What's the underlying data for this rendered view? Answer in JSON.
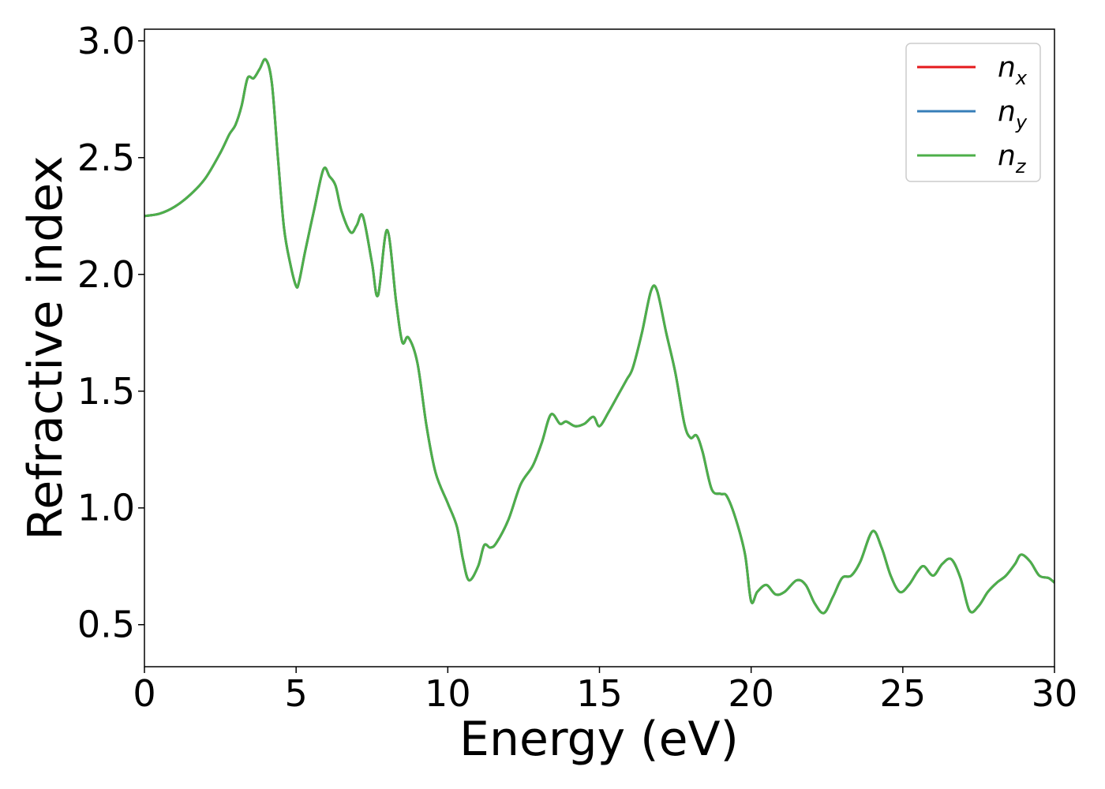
{
  "chart_data": {
    "type": "line",
    "title": "",
    "xlabel": "Energy (eV)",
    "ylabel": "Refractive index",
    "xlim": [
      0,
      30
    ],
    "ylim": [
      0.32,
      3.05
    ],
    "xticks": [
      0,
      5,
      10,
      15,
      20,
      25,
      30
    ],
    "xtick_labels": [
      "0",
      "5",
      "10",
      "15",
      "20",
      "25",
      "30"
    ],
    "yticks": [
      0.5,
      1.0,
      1.5,
      2.0,
      2.5,
      3.0
    ],
    "ytick_labels": [
      "0.5",
      "1.0",
      "1.5",
      "2.0",
      "2.5",
      "3.0"
    ],
    "grid": false,
    "legend_position": "top-right",
    "series": [
      {
        "name": "n",
        "subscript": "x",
        "color": "#e41a1c"
      },
      {
        "name": "n",
        "subscript": "y",
        "color": "#377eb8"
      },
      {
        "name": "n",
        "subscript": "z",
        "color": "#4daf4a"
      }
    ],
    "x": [
      0,
      0.5,
      1,
      1.5,
      2,
      2.5,
      2.8,
      3,
      3.2,
      3.4,
      3.6,
      3.8,
      4,
      4.2,
      4.4,
      4.6,
      4.8,
      5,
      5.1,
      5.3,
      5.6,
      5.9,
      6.1,
      6.3,
      6.5,
      6.8,
      7,
      7.2,
      7.5,
      7.7,
      8,
      8.3,
      8.5,
      8.7,
      9,
      9.3,
      9.6,
      10,
      10.3,
      10.5,
      10.7,
      11,
      11.2,
      11.4,
      11.6,
      12,
      12.4,
      12.8,
      13.1,
      13.4,
      13.7,
      13.9,
      14.2,
      14.5,
      14.8,
      15,
      15.3,
      15.6,
      15.9,
      16.1,
      16.4,
      16.7,
      16.9,
      17.2,
      17.5,
      17.8,
      18,
      18.2,
      18.4,
      18.7,
      19,
      19.2,
      19.5,
      19.8,
      20,
      20.2,
      20.5,
      20.8,
      21.1,
      21.5,
      21.8,
      22.1,
      22.4,
      22.7,
      23,
      23.3,
      23.6,
      24,
      24.3,
      24.6,
      24.9,
      25.2,
      25.5,
      25.7,
      26,
      26.3,
      26.6,
      26.9,
      27.2,
      27.5,
      27.8,
      28.1,
      28.4,
      28.7,
      28.9,
      29.2,
      29.5,
      29.8,
      30
    ],
    "values": [
      2.25,
      2.26,
      2.29,
      2.34,
      2.41,
      2.52,
      2.6,
      2.64,
      2.72,
      2.84,
      2.84,
      2.88,
      2.92,
      2.82,
      2.5,
      2.2,
      2.05,
      1.95,
      1.97,
      2.1,
      2.28,
      2.45,
      2.42,
      2.38,
      2.27,
      2.18,
      2.21,
      2.25,
      2.05,
      1.91,
      2.19,
      1.88,
      1.71,
      1.73,
      1.62,
      1.35,
      1.15,
      1.02,
      0.92,
      0.78,
      0.69,
      0.75,
      0.84,
      0.83,
      0.85,
      0.95,
      1.1,
      1.18,
      1.28,
      1.4,
      1.36,
      1.37,
      1.35,
      1.36,
      1.39,
      1.35,
      1.41,
      1.48,
      1.55,
      1.6,
      1.75,
      1.93,
      1.93,
      1.75,
      1.58,
      1.36,
      1.3,
      1.31,
      1.24,
      1.08,
      1.06,
      1.05,
      0.95,
      0.8,
      0.6,
      0.64,
      0.67,
      0.63,
      0.64,
      0.69,
      0.67,
      0.59,
      0.55,
      0.62,
      0.7,
      0.71,
      0.77,
      0.9,
      0.83,
      0.71,
      0.64,
      0.67,
      0.73,
      0.75,
      0.71,
      0.76,
      0.78,
      0.7,
      0.56,
      0.58,
      0.64,
      0.68,
      0.71,
      0.76,
      0.8,
      0.77,
      0.71,
      0.7,
      0.68
    ]
  }
}
